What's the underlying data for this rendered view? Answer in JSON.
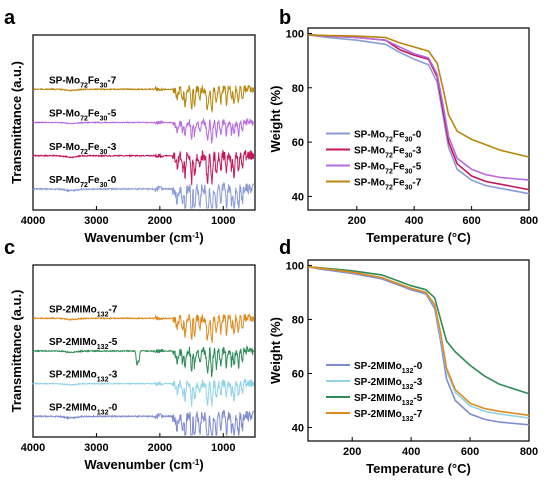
{
  "chart_data": [
    {
      "panel": "a",
      "type": "line",
      "xlabel": "Wavenumber (cm⁻¹)",
      "ylabel": "Transmittance (a.u.)",
      "xlim": [
        4000,
        500
      ],
      "xticks": [
        4000,
        3000,
        2000,
        1000
      ],
      "xreverse": true,
      "ylim": [
        0,
        100
      ],
      "offset_labels": true,
      "grid": false,
      "series": [
        {
          "name": "SP-Mo72Fe30-0",
          "label": {
            "base": "SP-Mo",
            "n1": "72",
            "m": "Fe",
            "n2": "30",
            "suffix": "-0"
          },
          "color": "#8a9cd6",
          "base": 55,
          "noise": 6,
          "dip": 0.85
        },
        {
          "name": "SP-Mo72Fe30-3",
          "label": {
            "base": "SP-Mo",
            "n1": "72",
            "m": "Fe",
            "n2": "30",
            "suffix": "-3"
          },
          "color": "#c2185b",
          "base": 50,
          "noise": 6,
          "dip": 0.75
        },
        {
          "name": "SP-Mo72Fe30-5",
          "label": {
            "base": "SP-Mo",
            "n1": "72",
            "m": "Fe",
            "n2": "30",
            "suffix": "-5"
          },
          "color": "#b76ae0",
          "base": 45,
          "noise": 6,
          "dip": 0.55
        },
        {
          "name": "SP-Mo72Fe30-7",
          "label": {
            "base": "SP-Mo",
            "n1": "72",
            "m": "Fe",
            "n2": "30",
            "suffix": "-7"
          },
          "color": "#b8860b",
          "base": 40,
          "noise": 6,
          "dip": 0.6
        }
      ]
    },
    {
      "panel": "b",
      "type": "line",
      "xlabel": "Temperature (°C)",
      "ylabel": "Weight (%)",
      "xlim": [
        30,
        800
      ],
      "xticks": [
        200,
        400,
        600,
        800
      ],
      "ylim": [
        35,
        102
      ],
      "yticks": [
        40,
        60,
        80,
        100
      ],
      "legend": "bottom-left",
      "grid": false,
      "series": [
        {
          "name": "SP-Mo72Fe30-0",
          "label": {
            "base": "SP-Mo",
            "n1": "72",
            "m": "Fe",
            "n2": "30",
            "suffix": "-0"
          },
          "color": "#8a9cd6",
          "x": [
            30,
            100,
            200,
            300,
            350,
            400,
            450,
            480,
            500,
            520,
            550,
            600,
            650,
            700,
            800
          ],
          "y": [
            99.5,
            98.5,
            97.5,
            96,
            93,
            90.5,
            88.5,
            82,
            70,
            58,
            50,
            46,
            44,
            43,
            41
          ]
        },
        {
          "name": "SP-Mo72Fe30-3",
          "label": {
            "base": "SP-Mo",
            "n1": "72",
            "m": "Fe",
            "n2": "30",
            "suffix": "-3"
          },
          "color": "#c2185b",
          "x": [
            30,
            100,
            200,
            300,
            350,
            400,
            450,
            480,
            500,
            520,
            550,
            600,
            650,
            700,
            800
          ],
          "y": [
            99.5,
            99,
            98.5,
            97.5,
            94,
            92,
            90.5,
            84,
            72,
            60,
            52,
            47.5,
            45.5,
            44.5,
            42.5
          ]
        },
        {
          "name": "SP-Mo72Fe30-5",
          "label": {
            "base": "SP-Mo",
            "n1": "72",
            "m": "Fe",
            "n2": "30",
            "suffix": "-5"
          },
          "color": "#b76ae0",
          "x": [
            30,
            100,
            200,
            300,
            350,
            400,
            450,
            480,
            500,
            520,
            550,
            600,
            650,
            700,
            800
          ],
          "y": [
            99.5,
            99,
            98.5,
            97.5,
            95,
            92.5,
            91,
            85,
            74,
            62,
            54,
            50,
            48,
            47,
            46
          ]
        },
        {
          "name": "SP-Mo72Fe30-7",
          "label": {
            "base": "SP-Mo",
            "n1": "72",
            "m": "Fe",
            "n2": "30",
            "suffix": "-7"
          },
          "color": "#b8860b",
          "x": [
            30,
            100,
            200,
            300,
            350,
            400,
            450,
            480,
            500,
            520,
            550,
            600,
            650,
            700,
            800
          ],
          "y": [
            99.5,
            99.2,
            99,
            98.5,
            96.5,
            95,
            93.5,
            89,
            80,
            70,
            64,
            61,
            59,
            57,
            54.5
          ]
        }
      ]
    },
    {
      "panel": "c",
      "type": "line",
      "xlabel": "Wavenumber (cm⁻¹)",
      "ylabel": "Transmittance (a.u.)",
      "xlim": [
        4000,
        500
      ],
      "xticks": [
        4000,
        3000,
        2000,
        1000
      ],
      "xreverse": true,
      "ylim": [
        0,
        100
      ],
      "offset_labels": true,
      "grid": false,
      "series": [
        {
          "name": "SP-2MIMo132-0",
          "label": {
            "base": "SP-2MIMo",
            "n1": "132",
            "m": "",
            "n2": "",
            "suffix": "-0"
          },
          "color": "#7f8bd1",
          "base": 55,
          "noise": 6,
          "dip": 0.85
        },
        {
          "name": "SP-2MIMo132-3",
          "label": {
            "base": "SP-2MIMo",
            "n1": "132",
            "m": "",
            "n2": "",
            "suffix": "-3"
          },
          "color": "#8fd3e8",
          "base": 50,
          "noise": 6,
          "dip": 0.6
        },
        {
          "name": "SP-2MIMo132-5",
          "label": {
            "base": "SP-2MIMo",
            "n1": "132",
            "m": "",
            "n2": "",
            "suffix": "-5"
          },
          "color": "#2e8b57",
          "base": 45,
          "noise": 6,
          "dip": 0.7,
          "peak2350": true
        },
        {
          "name": "SP-2MIMo132-7",
          "label": {
            "base": "SP-2MIMo",
            "n1": "132",
            "m": "",
            "n2": "",
            "suffix": "-7"
          },
          "color": "#e08a1e",
          "base": 40,
          "noise": 6,
          "dip": 0.65
        }
      ]
    },
    {
      "panel": "d",
      "type": "line",
      "xlabel": "Temperature (°C)",
      "ylabel": "Weight (%)",
      "xlim": [
        50,
        800
      ],
      "xticks": [
        200,
        400,
        600,
        800
      ],
      "ylim": [
        35,
        102
      ],
      "yticks": [
        40,
        60,
        80,
        100
      ],
      "legend": "bottom-left",
      "grid": false,
      "series": [
        {
          "name": "SP-2MIMo132-0",
          "label": {
            "base": "SP-2MIMo",
            "n1": "132",
            "m": "",
            "n2": "",
            "suffix": "-0"
          },
          "color": "#7f8bd1",
          "x": [
            50,
            100,
            200,
            300,
            350,
            400,
            450,
            480,
            500,
            520,
            550,
            600,
            650,
            700,
            800
          ],
          "y": [
            99.5,
            98.5,
            97,
            95,
            93,
            91,
            89.5,
            84,
            72,
            58,
            50,
            45,
            43,
            42,
            41
          ]
        },
        {
          "name": "SP-2MIMo132-3",
          "label": {
            "base": "SP-2MIMo",
            "n1": "132",
            "m": "",
            "n2": "",
            "suffix": "-3"
          },
          "color": "#8fd3e8",
          "x": [
            50,
            100,
            200,
            300,
            350,
            400,
            450,
            480,
            500,
            520,
            550,
            600,
            650,
            700,
            800
          ],
          "y": [
            99.5,
            98.8,
            97.5,
            95.5,
            93.5,
            91.5,
            90,
            85,
            74,
            61,
            53,
            48,
            46,
            45,
            43.5
          ]
        },
        {
          "name": "SP-2MIMo132-5",
          "label": {
            "base": "SP-2MIMo",
            "n1": "132",
            "m": "",
            "n2": "",
            "suffix": "-5"
          },
          "color": "#2e8b57",
          "x": [
            50,
            100,
            200,
            300,
            350,
            400,
            450,
            480,
            500,
            520,
            550,
            600,
            650,
            700,
            800
          ],
          "y": [
            99.5,
            99,
            98,
            96.5,
            94.5,
            92.5,
            91,
            88,
            80,
            72,
            68,
            63,
            59,
            56,
            52.5
          ]
        },
        {
          "name": "SP-2MIMo132-7",
          "label": {
            "base": "SP-2MIMo",
            "n1": "132",
            "m": "",
            "n2": "",
            "suffix": "-7"
          },
          "color": "#e08a1e",
          "x": [
            50,
            100,
            200,
            300,
            350,
            400,
            450,
            480,
            500,
            520,
            550,
            600,
            650,
            700,
            800
          ],
          "y": [
            99.5,
            98.8,
            97.5,
            95.5,
            93.5,
            91.5,
            90,
            85.5,
            75,
            62,
            54,
            49,
            47,
            46,
            44.5
          ]
        }
      ]
    }
  ],
  "panels": {
    "a": {
      "letter": "a"
    },
    "b": {
      "letter": "b"
    },
    "c": {
      "letter": "c"
    },
    "d": {
      "letter": "d"
    }
  }
}
